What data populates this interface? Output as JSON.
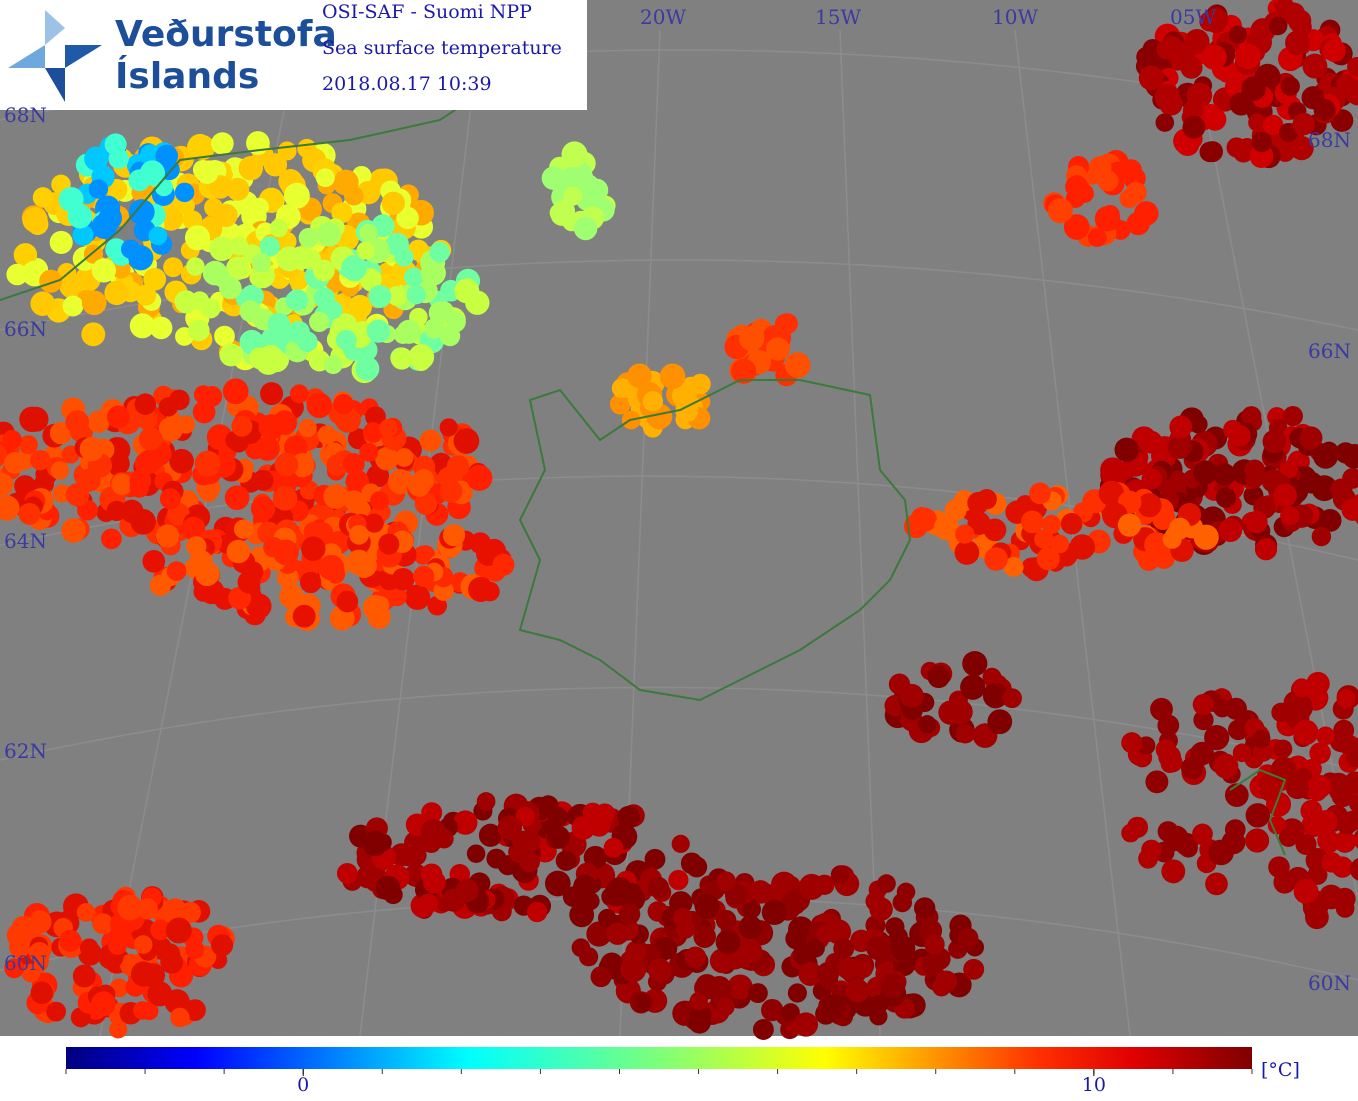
{
  "header": {
    "logo": {
      "line1": "Veðurstofa",
      "line2": "Íslands"
    },
    "lines": [
      "OSI-SAF - Suomi NPP",
      "Sea surface temperature",
      "2018.08.17 10:39"
    ]
  },
  "map": {
    "lon_labels": [
      "20W",
      "15W",
      "10W",
      "05W"
    ],
    "lat_labels_left": [
      "68N",
      "66N",
      "64N",
      "62N",
      "60N"
    ],
    "lat_labels_right": [
      "68N",
      "66N",
      "60N"
    ]
  },
  "colorbar": {
    "range": [
      -3,
      12
    ],
    "ticks": [
      0,
      10
    ],
    "minor_ticks": [
      -3,
      -2,
      -1,
      0,
      1,
      2,
      3,
      4,
      5,
      6,
      7,
      8,
      9,
      10,
      11,
      12
    ],
    "unit": "[°C]"
  }
}
